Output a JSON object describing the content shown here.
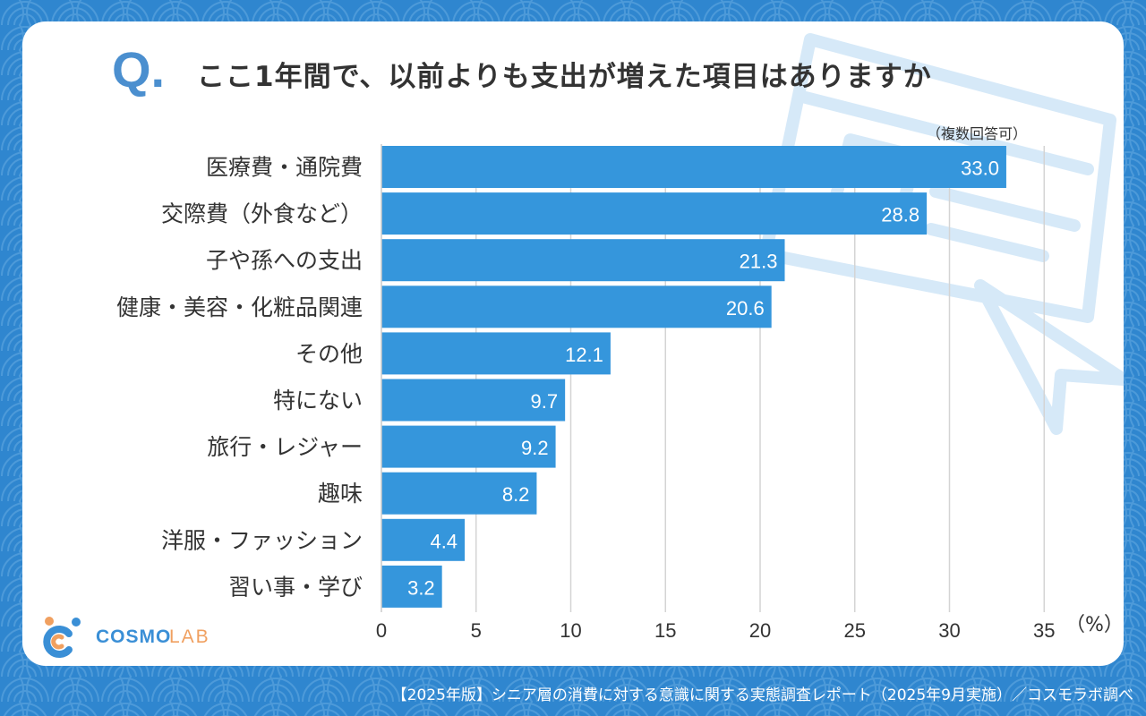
{
  "question": {
    "mark": "Q.",
    "title": "ここ1年間で、以前よりも支出が増えた項目はありますか"
  },
  "note": "（複数回答可）",
  "chart_data": {
    "type": "bar",
    "orientation": "horizontal",
    "categories": [
      "医療費・通院費",
      "交際費（外食など）",
      "子や孫への支出",
      "健康・美容・化粧品関連",
      "その他",
      "特にない",
      "旅行・レジャー",
      "趣味",
      "洋服・ファッション",
      "習い事・学び"
    ],
    "values": [
      33.0,
      28.8,
      21.3,
      20.6,
      12.1,
      9.7,
      9.2,
      8.2,
      4.4,
      3.2
    ],
    "value_labels": [
      "33.0",
      "28.8",
      "21.3",
      "20.6",
      "12.1",
      "9.7",
      "9.2",
      "8.2",
      "4.4",
      "3.2"
    ],
    "xlim": [
      0,
      35
    ],
    "xticks": [
      "0",
      "5",
      "10",
      "15",
      "20",
      "25",
      "30",
      "35"
    ],
    "xunit": "（%）",
    "grid": true,
    "bar_color": "#3596dc"
  },
  "logo": {
    "text_a": "COSMO",
    "text_b": "LAB"
  },
  "footer": "【2025年版】シニア層の消費に対する意識に関する実態調査レポート（2025年9月実施）／コスモラボ調べ",
  "colors": {
    "background": "#2f86cf",
    "accent": "#4b8fcf",
    "bar": "#3596dc",
    "logo_orange": "#f0a060"
  }
}
